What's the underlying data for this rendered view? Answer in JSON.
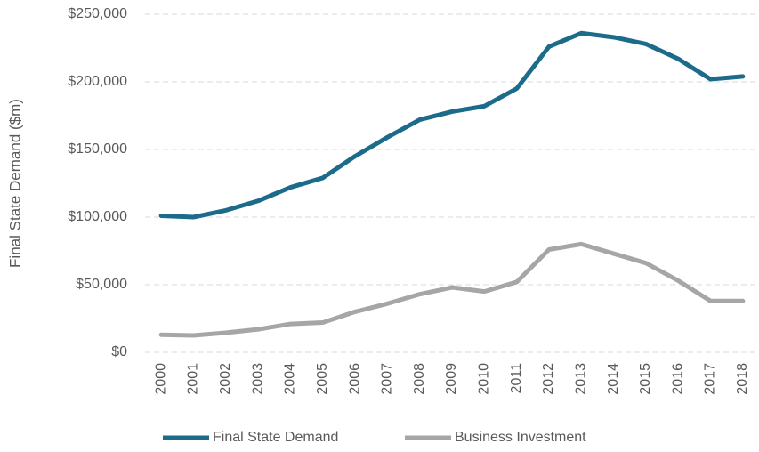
{
  "chart_data": {
    "type": "line",
    "y_label": "Final State Demand ($m)",
    "categories": [
      "2000",
      "2001",
      "2002",
      "2003",
      "2004",
      "2005",
      "2006",
      "2007",
      "2008",
      "2009",
      "2010",
      "2011",
      "2012",
      "2013",
      "2014",
      "2015",
      "2016",
      "2017",
      "2018"
    ],
    "series": [
      {
        "name": "Final State Demand",
        "color": "#1d6b8a",
        "values": [
          101000,
          100000,
          105000,
          112000,
          122000,
          129000,
          145000,
          159000,
          172000,
          178000,
          182000,
          195000,
          226000,
          236000,
          233000,
          228000,
          217000,
          202000,
          204000
        ]
      },
      {
        "name": "Business Investment",
        "color": "#a6a6a6",
        "values": [
          13000,
          12500,
          14500,
          17000,
          21000,
          22000,
          30000,
          36000,
          43000,
          48000,
          45000,
          52000,
          76000,
          80000,
          73000,
          66000,
          53000,
          38000,
          38000
        ]
      }
    ],
    "ylim": [
      0,
      250000
    ],
    "yticks": [
      {
        "value": 0,
        "label": "$0"
      },
      {
        "value": 50000,
        "label": "$50,000"
      },
      {
        "value": 100000,
        "label": "$100,000"
      },
      {
        "value": 150000,
        "label": "$150,000"
      },
      {
        "value": 200000,
        "label": "$200,000"
      },
      {
        "value": 250000,
        "label": "$250,000"
      }
    ],
    "grid": true,
    "legend": "bottom"
  }
}
